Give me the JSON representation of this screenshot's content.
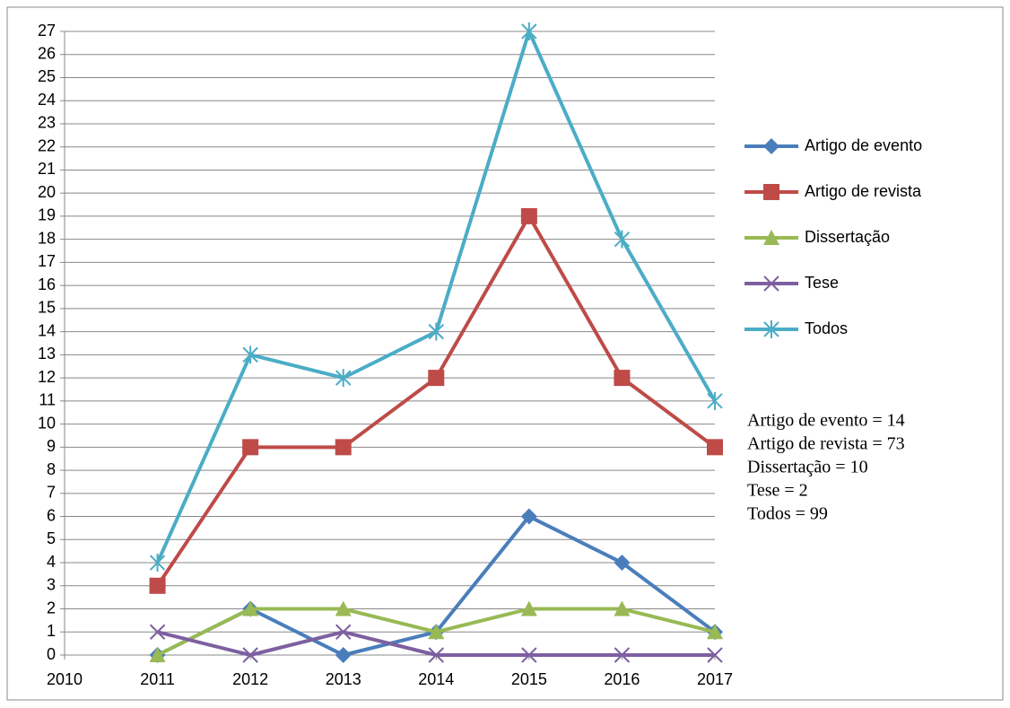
{
  "chart_data": {
    "type": "line",
    "x": [
      2011,
      2012,
      2013,
      2014,
      2015,
      2016,
      2017
    ],
    "xlim": [
      2010,
      2017
    ],
    "xticks": [
      2010,
      2011,
      2012,
      2013,
      2014,
      2015,
      2016,
      2017
    ],
    "ylim": [
      0,
      27
    ],
    "yticks": [
      0,
      1,
      2,
      3,
      4,
      5,
      6,
      7,
      8,
      9,
      10,
      11,
      12,
      13,
      14,
      15,
      16,
      17,
      18,
      19,
      20,
      21,
      22,
      23,
      24,
      25,
      26,
      27
    ],
    "grid": true,
    "legend": "right",
    "series": [
      {
        "name": "Artigo de evento",
        "color": "#4a7ebb",
        "marker": "diamond",
        "values": [
          0,
          2,
          0,
          1,
          6,
          4,
          1
        ]
      },
      {
        "name": "Artigo de revista",
        "color": "#be4b48",
        "marker": "square",
        "values": [
          3,
          9,
          9,
          12,
          19,
          12,
          9
        ]
      },
      {
        "name": "Dissertação",
        "color": "#98b954",
        "marker": "triangle",
        "values": [
          0,
          2,
          2,
          1,
          2,
          2,
          1
        ]
      },
      {
        "name": "Tese",
        "color": "#7d60a0",
        "marker": "x",
        "values": [
          1,
          0,
          1,
          0,
          0,
          0,
          0
        ]
      },
      {
        "name": "Todos",
        "color": "#4bacc6",
        "marker": "star",
        "values": [
          4,
          13,
          12,
          14,
          27,
          18,
          11
        ]
      }
    ],
    "annotations": [
      "Artigo de evento = 14",
      "Artigo de revista = 73",
      "Dissertação = 10",
      "Tese = 2",
      "Todos = 99"
    ]
  }
}
